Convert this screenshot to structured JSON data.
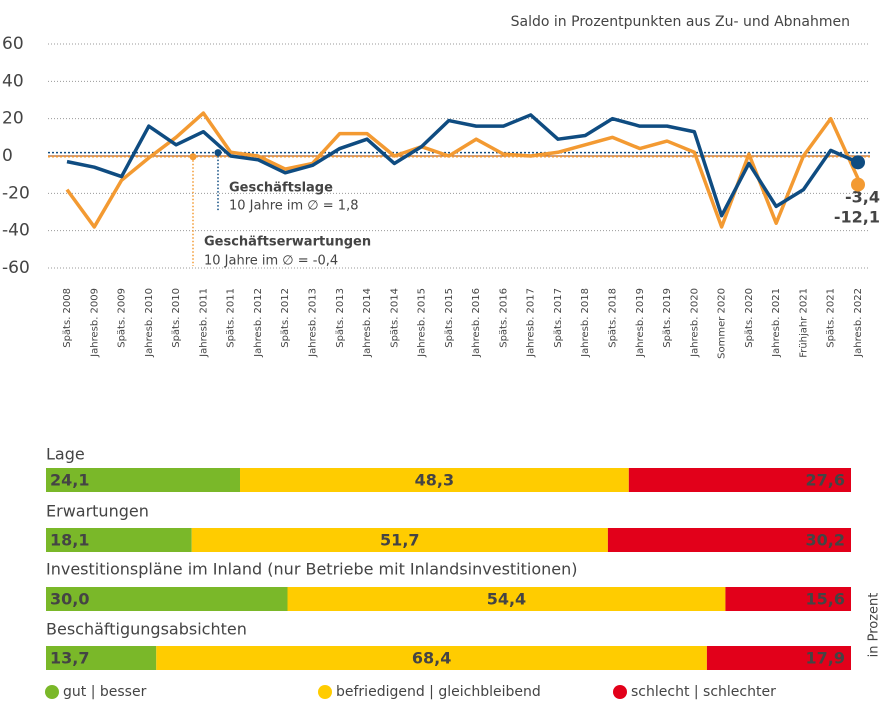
{
  "chart_data": [
    {
      "type": "line",
      "subtitle": "Saldo in Prozentpunkten aus Zu- und Abnahmen",
      "categories": [
        "Späts. 2008",
        "Jahresb. 2009",
        "Späts. 2009",
        "Jahresb. 2010",
        "Späts. 2010",
        "Jahresb. 2011",
        "Späts. 2011",
        "Jahresb. 2012",
        "Späts. 2012",
        "Jahresb. 2013",
        "Späts. 2013",
        "Jahresb. 2014",
        "Späts. 2014",
        "Jahresb. 2015",
        "Späts. 2015",
        "Jahresb. 2016",
        "Späts. 2016",
        "Jahresb. 2017",
        "Späts. 2017",
        "Jahresb. 2018",
        "Späts. 2018",
        "Jahresb. 2019",
        "Späts. 2019",
        "Jahresb. 2020",
        "Sommer 2020",
        "Späts. 2020",
        "Jahresb. 2021",
        "Frühjahr 2021",
        "Späts. 2021",
        "Jahresb. 2022"
      ],
      "series": [
        {
          "name": "Geschäftslage",
          "color": "#0f4c81",
          "values": [
            -3,
            -6,
            -11,
            16,
            6,
            13,
            0,
            -2,
            -9,
            -5,
            4,
            9,
            -4,
            5,
            19,
            16,
            16,
            22,
            9,
            11,
            20,
            16,
            16,
            13,
            -32,
            -4,
            -27,
            -18,
            3,
            -3.4
          ],
          "value_labels": [
            null,
            null,
            null,
            null,
            null,
            null,
            null,
            null,
            null,
            null,
            null,
            null,
            null,
            null,
            null,
            null,
            null,
            null,
            null,
            null,
            null,
            null,
            null,
            null,
            null,
            null,
            null,
            null,
            null,
            "-3,4"
          ],
          "mean": 1.8,
          "mean_label": "10 Jahre im ∅ = 1,8"
        },
        {
          "name": "Geschäftserwartungen",
          "color": "#f39a32",
          "values": [
            -18,
            -38,
            -13,
            -1,
            10,
            23,
            2,
            0,
            -7,
            -4,
            12,
            12,
            0,
            5,
            0,
            9,
            1,
            0,
            2,
            6,
            10,
            4,
            8,
            2,
            -38,
            1,
            -36,
            0,
            20,
            -12.1
          ],
          "value_labels": [
            null,
            null,
            null,
            null,
            null,
            null,
            null,
            null,
            null,
            null,
            null,
            null,
            null,
            null,
            null,
            null,
            null,
            null,
            null,
            null,
            null,
            null,
            null,
            null,
            null,
            null,
            null,
            null,
            null,
            "-12,1"
          ],
          "mean": -0.4,
          "mean_label": "10 Jahre im ∅ = -0,4"
        }
      ],
      "ylim": [
        -60,
        65
      ],
      "yticks": [
        60,
        40,
        20,
        0,
        -20,
        -40,
        -60
      ],
      "grid": true
    },
    {
      "type": "stacked_barh",
      "axis_label": "in Prozent",
      "categories": [
        "Lage",
        "Erwartungen",
        "Investitionspläne im Inland (nur Betriebe mit Inlandsinvestitionen)",
        "Beschäftigungsabsichten"
      ],
      "xlim": [
        0,
        100
      ],
      "series": [
        {
          "name": "gut | besser",
          "color": "#7ab829",
          "values": [
            24.1,
            18.1,
            30.0,
            13.7
          ],
          "value_labels": [
            "24,1",
            "18,1",
            "30,0",
            "13,7"
          ]
        },
        {
          "name": "befriedigend | gleichbleibend",
          "color": "#ffcc00",
          "values": [
            48.3,
            51.7,
            54.4,
            68.4
          ],
          "value_labels": [
            "48,3",
            "51,7",
            "54,4",
            "68,4"
          ]
        },
        {
          "name": "schlecht | schlechter",
          "color": "#e2001a",
          "values": [
            27.6,
            30.2,
            15.6,
            17.9
          ],
          "value_labels": [
            "27,6",
            "30,2",
            "15,6",
            "17,9"
          ]
        }
      ]
    }
  ]
}
